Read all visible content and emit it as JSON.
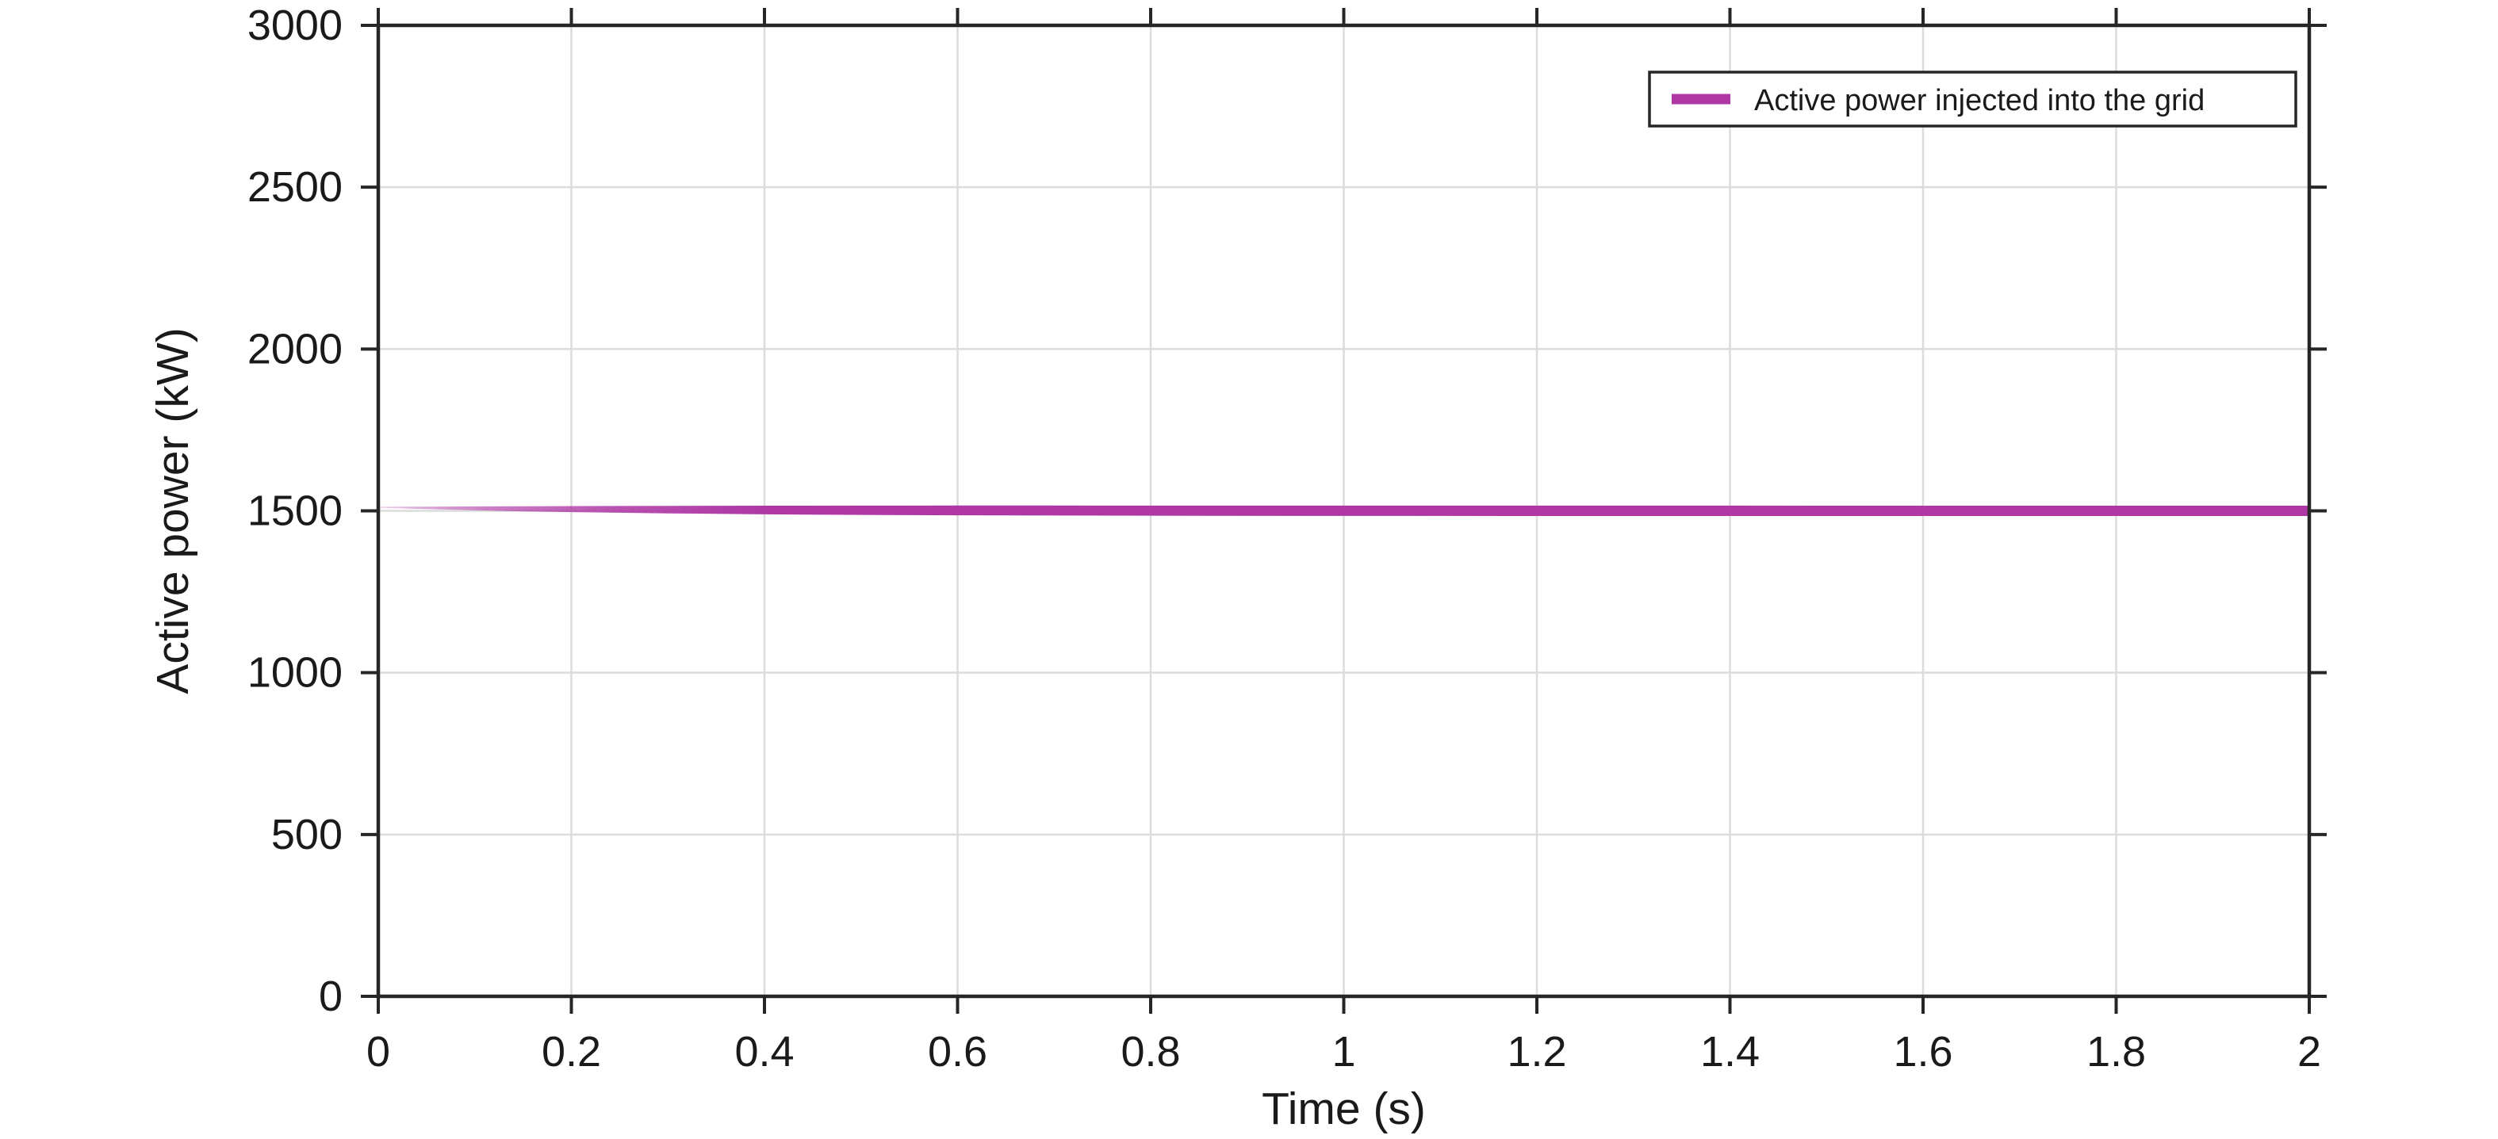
{
  "chart_data": {
    "type": "line",
    "title": "",
    "xlabel": "Time (s)",
    "ylabel": "Active power (kW)",
    "xlim": [
      0,
      2
    ],
    "ylim": [
      0,
      3000
    ],
    "xticks": [
      0,
      0.2,
      0.4,
      0.6,
      0.8,
      1,
      1.2,
      1.4,
      1.6,
      1.8,
      2
    ],
    "xtick_labels": [
      "0",
      "0.2",
      "0.4",
      "0.6",
      "0.8",
      "1",
      "1.2",
      "1.4",
      "1.6",
      "1.8",
      "2"
    ],
    "yticks": [
      0,
      500,
      1000,
      1500,
      2000,
      2500,
      3000
    ],
    "ytick_labels": [
      "0",
      "500",
      "1000",
      "1500",
      "2000",
      "2500",
      "3000"
    ],
    "grid": true,
    "grid_color": "#dcdcdc",
    "axis_color": "#262626",
    "text_color": "#1a1a1a",
    "background": "#ffffff",
    "legend": {
      "position": "northeast",
      "entries": [
        {
          "label": "Active power injected into the grid",
          "color": "#ae37a4"
        }
      ]
    },
    "series": [
      {
        "name": "Active power injected into the grid",
        "color": "#ae37a4",
        "style": "thick solid line, faint thin start that settles onto 1500 kW",
        "x": [
          0,
          0.05,
          0.1,
          0.15,
          0.2,
          0.3,
          0.4,
          0.5,
          0.6,
          0.7,
          0.8,
          1.0,
          1.2,
          1.4,
          1.6,
          1.8,
          2.0
        ],
        "y": [
          1511,
          1509.2,
          1507.7,
          1506.4,
          1505.4,
          1503.8,
          1502.6,
          1501.8,
          1501.3,
          1500.9,
          1500.6,
          1500.3,
          1500.2,
          1500.1,
          1500,
          1500,
          1500
        ],
        "envelope_halfwidth": [
          1.5,
          3.9,
          6.1,
          7.9,
          9.4,
          11.7,
          13.3,
          14.4,
          15.1,
          15.4,
          15.6,
          15.9,
          16,
          16,
          16,
          16,
          16
        ],
        "steady_state_value": 1500
      }
    ]
  }
}
